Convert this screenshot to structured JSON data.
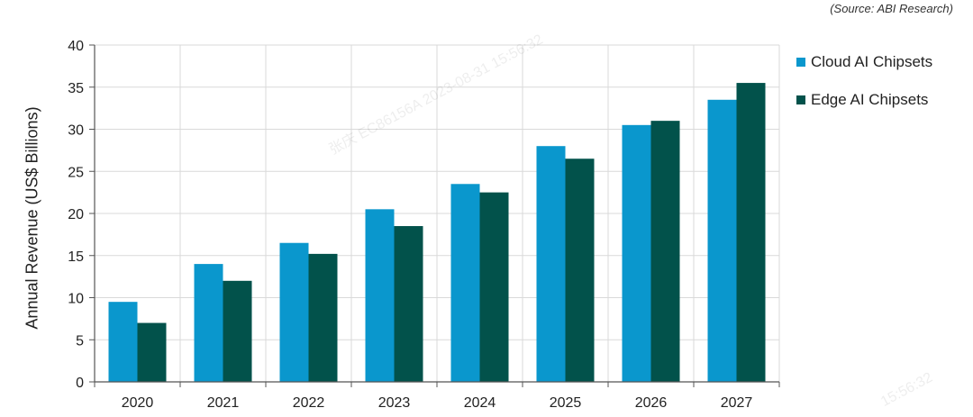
{
  "source_note": "(Source: ABI Research)",
  "watermark": "张庆 EC86156A 2023-08-31 15:56:32",
  "watermark_corner": "15:56:32",
  "chart_data": {
    "type": "bar",
    "categories": [
      "2020",
      "2021",
      "2022",
      "2023",
      "2024",
      "2025",
      "2026",
      "2027"
    ],
    "series": [
      {
        "name": "Cloud AI Chipsets",
        "color": "#0a97cd",
        "values": [
          9.5,
          14,
          16.5,
          20.5,
          23.5,
          28,
          30.5,
          33.5
        ]
      },
      {
        "name": "Edge AI Chipsets",
        "color": "#02524b",
        "values": [
          7,
          12,
          15.2,
          18.5,
          22.5,
          26.5,
          31,
          35.5
        ]
      }
    ],
    "ylabel": "Annual Revenue (US$ Billions)",
    "xlabel": "",
    "ylim": [
      0,
      40
    ],
    "yticks": [
      0,
      5,
      10,
      15,
      20,
      25,
      30,
      35,
      40
    ],
    "grid": true,
    "legend": "right"
  }
}
